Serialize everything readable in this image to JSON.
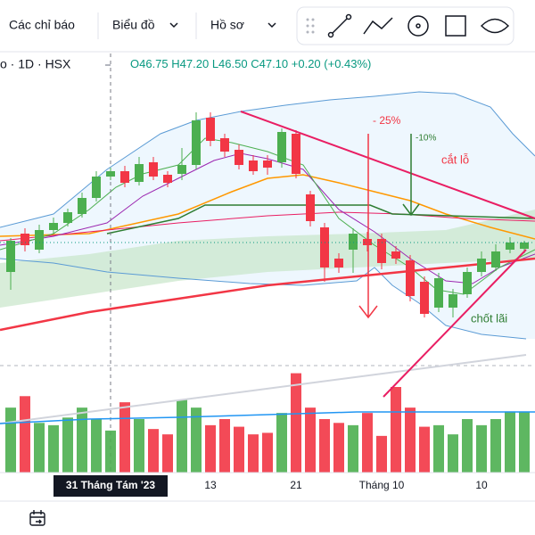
{
  "toolbar": {
    "items": [
      "Các chỉ báo",
      "Biểu đồ",
      "Hồ sơ"
    ]
  },
  "header": {
    "symbol": "o · 1D · HSX",
    "ohlc_text": [
      "O46.75",
      "H47.20",
      "L46.50",
      "C47.10",
      "+0.20 (+0.43%)"
    ]
  },
  "annotations": [
    "- 25%",
    "-10%",
    "cắt lỗ",
    "chốt lãi"
  ],
  "crosshair_label": "31 Tháng Tám '23",
  "chart_data": {
    "type": "candlestick",
    "up_color": "#4caf50",
    "down_color": "#f23645",
    "ylim": [
      40.7,
      56.45
    ],
    "vlim": [
      0,
      140
    ],
    "categories": [
      null,
      null,
      null,
      null,
      null,
      null,
      null,
      null,
      null,
      null,
      null,
      null,
      null,
      null,
      "13",
      null,
      null,
      null,
      null,
      null,
      "21",
      null,
      null,
      null,
      null,
      null,
      "Tháng 10",
      null,
      null,
      null,
      null,
      null,
      null,
      "10",
      null,
      null,
      null
    ],
    "open": [
      45.45,
      47.6,
      46.7,
      47.8,
      48.2,
      48.7,
      49.6,
      50.8,
      51.1,
      50.5,
      51.6,
      50.9,
      50.95,
      51.45,
      54.1,
      52.95,
      52.3,
      51.7,
      51.7,
      51.6,
      53.2,
      49.8,
      47.95,
      46.2,
      46.7,
      47.3,
      47.3,
      46.6,
      46.1,
      44.9,
      43.45,
      43.45,
      44.2,
      45.45,
      45.7,
      46.7,
      46.75
    ],
    "high": [
      47.35,
      47.9,
      48.1,
      48.5,
      49.0,
      49.9,
      51.1,
      51.3,
      51.4,
      51.9,
      51.9,
      51.1,
      52.4,
      54.4,
      54.4,
      53.2,
      52.6,
      52.0,
      52.0,
      53.5,
      53.4,
      50.0,
      48.2,
      46.5,
      47.9,
      47.7,
      47.6,
      46.9,
      46.4,
      45.2,
      45.4,
      44.5,
      45.7,
      46.6,
      47.0,
      47.4,
      47.2
    ],
    "low": [
      44.45,
      46.6,
      46.5,
      47.6,
      48.0,
      48.5,
      49.4,
      50.6,
      50.2,
      50.3,
      50.6,
      50.2,
      50.6,
      51.2,
      52.5,
      51.9,
      51.2,
      50.9,
      50.9,
      51.3,
      50.7,
      48.0,
      44.9,
      45.4,
      45.4,
      46.6,
      45.6,
      45.9,
      43.8,
      42.9,
      43.2,
      42.9,
      44.0,
      45.2,
      45.5,
      46.5,
      46.5
    ],
    "close": [
      47.2,
      46.95,
      47.8,
      48.2,
      48.8,
      49.6,
      50.8,
      51.1,
      50.45,
      51.5,
      50.8,
      50.45,
      51.45,
      53.95,
      52.8,
      52.2,
      51.45,
      51.1,
      51.3,
      53.3,
      50.95,
      48.3,
      45.7,
      45.7,
      47.6,
      46.95,
      45.95,
      46.2,
      44.1,
      43.1,
      45.1,
      44.2,
      45.45,
      46.2,
      46.6,
      47.1,
      47.1
    ],
    "volume": [
      85,
      100,
      65,
      62,
      72,
      85,
      70,
      55,
      92,
      70,
      57,
      50,
      95,
      85,
      62,
      70,
      60,
      50,
      52,
      78,
      130,
      85,
      70,
      65,
      62,
      78,
      48,
      112,
      85,
      60,
      62,
      50,
      70,
      62,
      70,
      80,
      80
    ]
  }
}
